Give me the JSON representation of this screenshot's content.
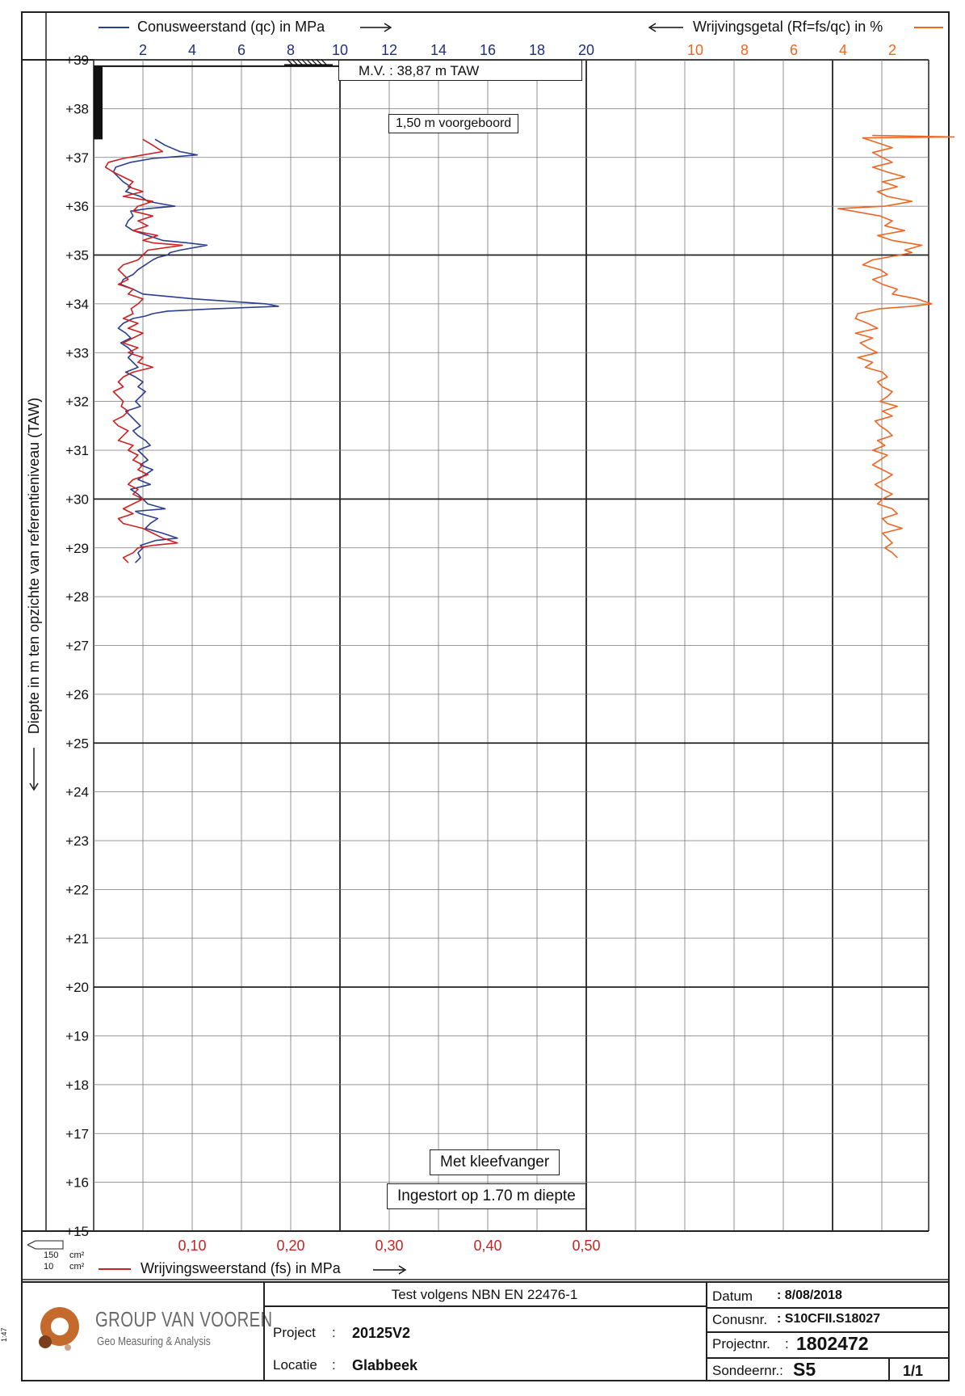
{
  "chart_data": {
    "type": "line",
    "title": "",
    "top_axis_left_label": "Conusweerstand (qc) in MPa",
    "top_axis_right_label": "Wrijvingsgetal (Rf=fs/qc) in %",
    "bottom_axis_label": "Wrijvingsweerstand (fs) in MPa",
    "ylabel": "Diepte in m ten opzichte van referentieniveau (TAW)",
    "y_ticks": [
      "+39",
      "+38",
      "+37",
      "+36",
      "+35",
      "+34",
      "+33",
      "+32",
      "+31",
      "+30",
      "+29",
      "+28",
      "+27",
      "+26",
      "+25",
      "+24",
      "+23",
      "+22",
      "+21",
      "+20",
      "+19",
      "+18",
      "+17",
      "+16",
      "+15"
    ],
    "y_range": [
      15,
      39
    ],
    "qc_ticks": [
      "2",
      "4",
      "6",
      "8",
      "10",
      "12",
      "14",
      "16",
      "18",
      "20"
    ],
    "qc_range": [
      0,
      20
    ],
    "rf_ticks": [
      "10",
      "8",
      "6",
      "4",
      "2"
    ],
    "rf_range": [
      12,
      0
    ],
    "fs_ticks": [
      "0,10",
      "0,20",
      "0,30",
      "0,40",
      "0,50"
    ],
    "fs_range": [
      0,
      0.5
    ],
    "annotations": {
      "mv": "M.V. :   38,87   m TAW",
      "predrill": "1,50 m voorgeboord",
      "sleeve": "Met kleefvanger",
      "collapsed": "Ingestort op 1.70 m diepte"
    },
    "legend_box": [
      "150",
      "cm²",
      "10",
      "cm²"
    ],
    "colors": {
      "qc": "#2b3e8f",
      "fs": "#cc2222",
      "rf": "#ee6622",
      "fs_ticks": "#cc2222",
      "qc_ticks": "#1f2f7a",
      "rf_ticks": "#ee6622"
    },
    "series": [
      {
        "name": "Conusweerstand (qc) in MPa",
        "key": "qc",
        "depth": [
          37.37,
          37.25,
          37.12,
          37.05,
          36.98,
          36.9,
          36.8,
          36.7,
          36.6,
          36.5,
          36.4,
          36.3,
          36.2,
          36.1,
          36.0,
          35.95,
          35.9,
          35.8,
          35.7,
          35.6,
          35.5,
          35.4,
          35.3,
          35.25,
          35.2,
          35.1,
          35.05,
          35.0,
          34.95,
          34.9,
          34.8,
          34.7,
          34.6,
          34.5,
          34.4,
          34.3,
          34.2,
          34.1,
          34.0,
          33.95,
          33.9,
          33.85,
          33.8,
          33.75,
          33.7,
          33.6,
          33.5,
          33.4,
          33.3,
          33.2,
          33.1,
          33.0,
          32.9,
          32.8,
          32.7,
          32.6,
          32.5,
          32.4,
          32.3,
          32.2,
          32.1,
          32.0,
          31.9,
          31.8,
          31.7,
          31.6,
          31.5,
          31.4,
          31.3,
          31.2,
          31.1,
          31.0,
          30.9,
          30.8,
          30.7,
          30.6,
          30.5,
          30.4,
          30.3,
          30.2,
          30.1,
          30.0,
          29.9,
          29.8,
          29.75,
          29.7,
          29.6,
          29.5,
          29.4,
          29.3,
          29.2,
          29.15,
          29.1,
          29.05,
          29.0,
          28.9,
          28.8,
          28.7
        ],
        "values": [
          2.5,
          2.9,
          3.5,
          4.2,
          2.4,
          1.5,
          0.9,
          0.8,
          1.0,
          1.2,
          1.5,
          1.3,
          1.9,
          2.2,
          3.3,
          2.2,
          1.5,
          1.6,
          1.4,
          1.3,
          1.6,
          2.2,
          2.8,
          3.8,
          4.6,
          3.5,
          3.1,
          3.0,
          2.6,
          2.4,
          2.1,
          1.8,
          1.6,
          1.2,
          1.1,
          1.6,
          2.0,
          4.1,
          7.0,
          7.5,
          5.0,
          3.0,
          2.4,
          2.1,
          1.6,
          1.2,
          1.0,
          1.3,
          1.5,
          1.1,
          1.4,
          1.6,
          1.4,
          1.6,
          1.8,
          1.3,
          1.7,
          2.0,
          1.8,
          2.1,
          1.9,
          1.7,
          1.9,
          1.3,
          1.5,
          1.7,
          1.9,
          1.6,
          1.8,
          2.1,
          2.3,
          1.8,
          2.0,
          2.2,
          1.9,
          2.4,
          2.1,
          1.8,
          2.3,
          1.5,
          1.8,
          2.0,
          2.2,
          2.9,
          1.7,
          1.9,
          2.6,
          2.3,
          2.1,
          2.8,
          3.4,
          2.5,
          2.2,
          1.9,
          2.0,
          1.8,
          1.9,
          1.7
        ]
      },
      {
        "name": "Wrijvingsweerstand (fs) in MPa",
        "key": "fs",
        "depth": [
          37.37,
          37.25,
          37.12,
          37.05,
          36.98,
          36.9,
          36.8,
          36.7,
          36.6,
          36.5,
          36.4,
          36.3,
          36.2,
          36.1,
          36.0,
          35.9,
          35.8,
          35.7,
          35.6,
          35.5,
          35.4,
          35.3,
          35.25,
          35.2,
          35.1,
          35.0,
          34.9,
          34.8,
          34.7,
          34.6,
          34.5,
          34.4,
          34.3,
          34.2,
          34.1,
          34.0,
          33.9,
          33.8,
          33.7,
          33.6,
          33.5,
          33.4,
          33.3,
          33.2,
          33.1,
          33.0,
          32.9,
          32.8,
          32.7,
          32.6,
          32.5,
          32.4,
          32.3,
          32.2,
          32.1,
          32.0,
          31.9,
          31.8,
          31.7,
          31.6,
          31.5,
          31.4,
          31.3,
          31.2,
          31.1,
          31.0,
          30.9,
          30.8,
          30.7,
          30.6,
          30.5,
          30.4,
          30.3,
          30.2,
          30.1,
          30.0,
          29.9,
          29.8,
          29.7,
          29.6,
          29.5,
          29.4,
          29.3,
          29.2,
          29.1,
          29.05,
          29.0,
          28.9,
          28.8,
          28.7
        ],
        "values": [
          0.05,
          0.06,
          0.07,
          0.05,
          0.03,
          0.015,
          0.012,
          0.02,
          0.03,
          0.04,
          0.035,
          0.05,
          0.03,
          0.06,
          0.045,
          0.04,
          0.06,
          0.045,
          0.055,
          0.04,
          0.065,
          0.05,
          0.06,
          0.09,
          0.055,
          0.05,
          0.045,
          0.03,
          0.025,
          0.03,
          0.035,
          0.025,
          0.04,
          0.035,
          0.05,
          0.045,
          0.038,
          0.04,
          0.03,
          0.045,
          0.035,
          0.05,
          0.04,
          0.03,
          0.045,
          0.035,
          0.05,
          0.045,
          0.06,
          0.04,
          0.03,
          0.025,
          0.03,
          0.02,
          0.025,
          0.03,
          0.028,
          0.035,
          0.03,
          0.02,
          0.025,
          0.035,
          0.03,
          0.025,
          0.04,
          0.035,
          0.045,
          0.04,
          0.05,
          0.045,
          0.055,
          0.04,
          0.035,
          0.045,
          0.04,
          0.05,
          0.04,
          0.03,
          0.04,
          0.025,
          0.03,
          0.05,
          0.06,
          0.07,
          0.085,
          0.06,
          0.045,
          0.04,
          0.03,
          0.035
        ]
      },
      {
        "name": "Wrijvingsgetal (Rf=fs/qc) in %",
        "key": "rf",
        "depth": [
          37.45,
          37.42,
          37.4,
          37.3,
          37.2,
          37.1,
          37.0,
          36.9,
          36.8,
          36.7,
          36.6,
          36.5,
          36.4,
          36.3,
          36.2,
          36.1,
          36.0,
          35.95,
          35.9,
          35.8,
          35.7,
          35.6,
          35.5,
          35.4,
          35.3,
          35.2,
          35.1,
          35.05,
          35.0,
          34.9,
          34.8,
          34.7,
          34.6,
          34.5,
          34.4,
          34.3,
          34.2,
          34.1,
          34.0,
          33.95,
          33.9,
          33.8,
          33.7,
          33.6,
          33.5,
          33.4,
          33.3,
          33.2,
          33.1,
          33.0,
          32.9,
          32.8,
          32.7,
          32.6,
          32.5,
          32.4,
          32.3,
          32.2,
          32.1,
          32.0,
          31.9,
          31.8,
          31.7,
          31.6,
          31.5,
          31.4,
          31.3,
          31.2,
          31.1,
          31.0,
          30.9,
          30.8,
          30.7,
          30.6,
          30.5,
          30.4,
          30.3,
          30.2,
          30.1,
          30.0,
          29.9,
          29.8,
          29.7,
          29.6,
          29.5,
          29.4,
          29.3,
          29.2,
          29.1,
          29.0,
          28.9,
          28.8
        ],
        "values": [
          2.8,
          -0.5,
          3.2,
          2.6,
          2.0,
          2.8,
          2.4,
          2.0,
          2.8,
          2.2,
          1.5,
          2.4,
          1.8,
          2.6,
          2.2,
          1.2,
          2.3,
          4.2,
          3.6,
          2.5,
          2.0,
          2.3,
          1.5,
          2.6,
          2.0,
          0.8,
          1.5,
          1.2,
          1.7,
          2.8,
          3.2,
          2.5,
          2.2,
          2.8,
          2.4,
          1.8,
          2.0,
          1.0,
          0.4,
          1.2,
          2.5,
          3.4,
          3.5,
          3.0,
          2.6,
          3.5,
          2.8,
          3.3,
          3.0,
          2.6,
          3.4,
          2.8,
          3.1,
          2.4,
          2.2,
          2.6,
          2.4,
          2.0,
          2.2,
          2.5,
          1.8,
          2.4,
          2.0,
          2.7,
          2.5,
          2.2,
          2.0,
          2.6,
          2.3,
          2.8,
          2.2,
          2.5,
          2.8,
          2.4,
          2.0,
          2.3,
          2.7,
          2.4,
          2.0,
          2.4,
          2.6,
          2.0,
          1.8,
          2.4,
          2.2,
          1.6,
          2.4,
          2.2,
          2.0,
          2.3,
          2.0,
          1.8
        ]
      }
    ]
  },
  "title_block": {
    "test": "Test volgens NBN EN 22476-1",
    "project_label": "Project",
    "project_value": "20125V2",
    "locatie_label": "Locatie",
    "locatie_value": "Glabbeek",
    "datum_label": "Datum",
    "datum_value": ": 8/08/2018",
    "conus_label": "Conusnr.",
    "conus_value": ": S10CFII.S18027",
    "projectnr_label": "Projectnr.",
    "projectnr_value": "1802472",
    "sonde_label": "Sondeernr.:",
    "sonde_value": "S5",
    "page": "1/1",
    "colon": ":",
    "company_name": "GROUP VAN VOOREN",
    "company_tagline": "Geo Measuring & Analysis",
    "sheet_mark": "1:47"
  }
}
